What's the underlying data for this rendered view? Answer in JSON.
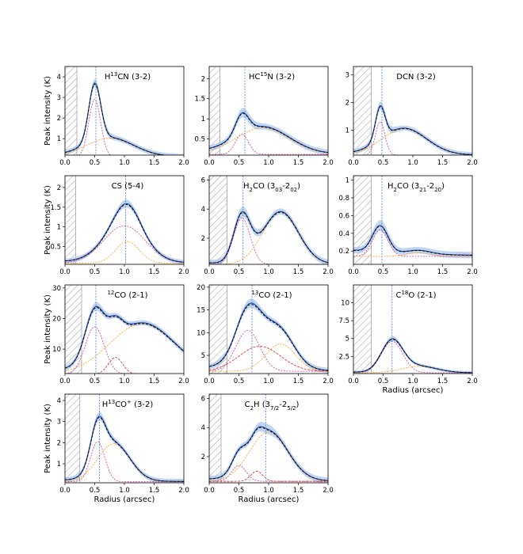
{
  "figure": {
    "ylabel": "Peak intensity (K)",
    "xlabel": "Radius (arcsec)"
  },
  "chart_data": [
    {
      "type": "line",
      "title_main": "H",
      "title_sup": "13",
      "title_rest": "CN (3-2)",
      "xlim": [
        0,
        2
      ],
      "ylim": [
        0.2,
        4.5
      ],
      "yticks": [
        1,
        2,
        3,
        4
      ],
      "xticks": [
        0.0,
        0.5,
        1.0,
        1.5,
        2.0
      ],
      "hatch_end": 0.2,
      "vline": 0.52,
      "comp1": {
        "amp": 2.8,
        "mu": 0.5,
        "sig": 0.1
      },
      "comp2": {
        "amp": 0.9,
        "mu": 0.75,
        "sig": 0.4
      },
      "base": 0.12,
      "band": 0.2
    },
    {
      "type": "line",
      "title_main": "HC",
      "title_sup": "15",
      "title_rest": "N (3-2)",
      "xlim": [
        0,
        2
      ],
      "ylim": [
        0.1,
        2.3
      ],
      "yticks": [
        0.5,
        1.0,
        1.5,
        2.0
      ],
      "xticks": [
        0.0,
        0.5,
        1.0,
        1.5,
        2.0
      ],
      "hatch_end": 0.18,
      "vline": 0.6,
      "comp1": {
        "amp": 0.5,
        "mu": 0.55,
        "sig": 0.11
      },
      "comp2": {
        "amp": 0.66,
        "mu": 0.9,
        "sig": 0.45
      },
      "base": 0.12,
      "band": 0.12
    },
    {
      "type": "line",
      "title_main": "DCN (3-2)",
      "title_sup": "",
      "title_rest": "",
      "xlim": [
        0,
        2
      ],
      "ylim": [
        0.1,
        3.3
      ],
      "yticks": [
        1,
        2,
        3
      ],
      "xticks": [
        0.0,
        0.5,
        1.0,
        1.5,
        2.0
      ],
      "hatch_end": 0.3,
      "vline": 0.48,
      "comp1": {
        "amp": 1.2,
        "mu": 0.45,
        "sig": 0.08
      },
      "comp2": {
        "amp": 0.95,
        "mu": 0.85,
        "sig": 0.38
      },
      "base": 0.1,
      "band": 0.15
    },
    {
      "type": "line",
      "title_main": "CS (5-4)",
      "title_sup": "",
      "title_rest": "",
      "xlim": [
        0,
        2
      ],
      "ylim": [
        0.05,
        2.3
      ],
      "yticks": [
        0.5,
        1.0,
        1.5,
        2.0
      ],
      "xticks": [
        0.0,
        0.5,
        1.0,
        1.5,
        2.0
      ],
      "hatch_end": 0.18,
      "vline": 1.02,
      "comp1": {
        "amp": 0.95,
        "mu": 1.0,
        "sig": 0.35
      },
      "comp2": {
        "amp": 0.55,
        "mu": 1.05,
        "sig": 0.2
      },
      "base": 0.08,
      "band": 0.1
    },
    {
      "type": "line",
      "title_main": "H",
      "title_sup": "",
      "title_rest": "CO (3",
      "title_full": "H2CO (303-202)",
      "xlim": [
        0,
        2
      ],
      "ylim": [
        0.2,
        6.3
      ],
      "yticks": [
        2,
        4,
        6
      ],
      "xticks": [
        0.0,
        0.5,
        1.0,
        1.5,
        2.0
      ],
      "hatch_end": 0.3,
      "vline": 0.57,
      "comp1": {
        "amp": 3.2,
        "mu": 0.55,
        "sig": 0.14
      },
      "comp2": {
        "amp": 3.6,
        "mu": 1.2,
        "sig": 0.3
      },
      "base": 0.2,
      "band": 0.35
    },
    {
      "type": "line",
      "title_main": "H",
      "title_sup": "",
      "title_rest": "",
      "title_full": "H2CO (321-220)",
      "xlim": [
        0,
        2
      ],
      "ylim": [
        0.05,
        1.05
      ],
      "yticks": [
        0.2,
        0.4,
        0.6,
        0.8,
        1.0
      ],
      "xticks": [
        0.0,
        0.5,
        1.0,
        1.5,
        2.0
      ],
      "hatch_end": 0.3,
      "vline": 0.48,
      "comp1": {
        "amp": 0.3,
        "mu": 0.45,
        "sig": 0.13
      },
      "comp2": {
        "amp": 0.04,
        "mu": 1.1,
        "sig": 0.2
      },
      "base": 0.14,
      "band": 0.06
    },
    {
      "type": "line",
      "title_main": "",
      "title_sup": "12",
      "title_rest": "CO (2-1)",
      "xlim": [
        0,
        2
      ],
      "ylim": [
        2,
        31
      ],
      "yticks": [
        10,
        20,
        30
      ],
      "xticks": [
        0.0,
        0.5,
        1.0,
        1.5,
        2.0
      ],
      "hatch_end": 0.28,
      "vline": 0.52,
      "comp1": {
        "amp": 15.5,
        "mu": 0.5,
        "sig": 0.16
      },
      "comp2": {
        "amp": 16.5,
        "mu": 1.3,
        "sig": 0.55
      },
      "comp3": {
        "amp": 5.5,
        "mu": 0.85,
        "sig": 0.12
      },
      "base": 1.8,
      "band": 1.4
    },
    {
      "type": "line",
      "title_main": "",
      "title_sup": "13",
      "title_rest": "CO (2-1)",
      "xlim": [
        0,
        2
      ],
      "ylim": [
        1,
        20.5
      ],
      "yticks": [
        5,
        10,
        15,
        20
      ],
      "xticks": [
        0.0,
        0.5,
        1.0,
        1.5,
        2.0
      ],
      "hatch_end": 0.3,
      "vline": 0.72,
      "comp1": {
        "amp": 9.0,
        "mu": 0.65,
        "sig": 0.2
      },
      "comp2": {
        "amp": 6.0,
        "mu": 1.2,
        "sig": 0.25
      },
      "comp3": {
        "amp": 5.5,
        "mu": 0.85,
        "sig": 0.35
      },
      "base": 1.5,
      "band": 1.0
    },
    {
      "type": "line",
      "title_main": "C",
      "title_sup": "18",
      "title_rest": "O (2-1)",
      "xlim": [
        0,
        2
      ],
      "ylim": [
        0.1,
        12.5
      ],
      "yticks": [
        2.5,
        5.0,
        7.5,
        10.0
      ],
      "xticks": [
        0.0,
        0.5,
        1.0,
        1.5,
        2.0
      ],
      "hatch_end": 0.3,
      "vline": 0.65,
      "comp1": {
        "amp": 4.4,
        "mu": 0.65,
        "sig": 0.18
      },
      "comp2": {
        "amp": 0.9,
        "mu": 1.1,
        "sig": 0.3
      },
      "base": 0.2,
      "band": 0.35
    },
    {
      "type": "line",
      "title_main": "H",
      "title_sup": "13",
      "title_rest": "CO",
      "title_full": "H13CO+ (3-2)",
      "xlim": [
        0,
        2
      ],
      "ylim": [
        0.1,
        4.3
      ],
      "yticks": [
        1,
        2,
        3,
        4
      ],
      "xticks": [
        0.0,
        0.5,
        1.0,
        1.5,
        2.0
      ],
      "hatch_end": 0.25,
      "vline": 0.58,
      "comp1": {
        "amp": 1.9,
        "mu": 0.55,
        "sig": 0.12
      },
      "comp2": {
        "amp": 1.8,
        "mu": 0.82,
        "sig": 0.27
      },
      "base": 0.15,
      "band": 0.2
    },
    {
      "type": "line",
      "title_main": "C",
      "title_sup": "",
      "title_rest": "H (3",
      "title_full": "C2H (37/2-25/2)",
      "xlim": [
        0,
        2
      ],
      "ylim": [
        0.2,
        6.3
      ],
      "yticks": [
        2,
        4,
        6
      ],
      "xticks": [
        0.0,
        0.5,
        1.0,
        1.5,
        2.0
      ],
      "hatch_end": 0.2,
      "vline": 0.95,
      "comp1": {
        "amp": 1.1,
        "mu": 0.5,
        "sig": 0.12
      },
      "comp2": {
        "amp": 3.4,
        "mu": 1.0,
        "sig": 0.32
      },
      "comp3": {
        "amp": 0.7,
        "mu": 0.8,
        "sig": 0.1
      },
      "base": 0.3,
      "band": 0.35
    }
  ],
  "panel_titles": [
    {
      "pre": "H",
      "sup": "13",
      "sub": "",
      "post": "CN (3-2)",
      "sub2": "",
      "post2": "",
      "sub3": "",
      "post3": ""
    },
    {
      "pre": "HC",
      "sup": "15",
      "sub": "",
      "post": "N (3-2)",
      "sub2": "",
      "post2": "",
      "sub3": "",
      "post3": ""
    },
    {
      "pre": "DCN (3-2)",
      "sup": "",
      "sub": "",
      "post": "",
      "sub2": "",
      "post2": "",
      "sub3": "",
      "post3": ""
    },
    {
      "pre": "CS (5-4)",
      "sup": "",
      "sub": "",
      "post": "",
      "sub2": "",
      "post2": "",
      "sub3": "",
      "post3": ""
    },
    {
      "pre": "H",
      "sup": "",
      "sub": "2",
      "post": "CO (3",
      "sub2": "03",
      "post2": "-2",
      "sub3": "02",
      "post3": ")"
    },
    {
      "pre": "H",
      "sup": "",
      "sub": "2",
      "post": "CO (3",
      "sub2": "21",
      "post2": "-2",
      "sub3": "20",
      "post3": ")"
    },
    {
      "pre": "",
      "sup": "12",
      "sub": "",
      "post": "CO (2-1)",
      "sub2": "",
      "post2": "",
      "sub3": "",
      "post3": ""
    },
    {
      "pre": "",
      "sup": "13",
      "sub": "",
      "post": "CO (2-1)",
      "sub2": "",
      "post2": "",
      "sub3": "",
      "post3": ""
    },
    {
      "pre": "C",
      "sup": "18",
      "sub": "",
      "post": "O (2-1)",
      "sub2": "",
      "post2": "",
      "sub3": "",
      "post3": ""
    },
    {
      "pre": "H",
      "sup": "13",
      "sub": "",
      "post": "CO",
      "sup2": "+",
      "post2": " (3-2)",
      "sub2": "",
      "sub3": "",
      "post3": ""
    },
    {
      "pre": "C",
      "sup": "",
      "sub": "2",
      "post": "H (3",
      "sub2": "7/2",
      "post2": "-2",
      "sub3": "5/2",
      "post3": ")"
    }
  ],
  "colors": {
    "band": "#aec7e8",
    "data": "#1f3fa0",
    "model": "#000000",
    "comp1": "#d63fa0",
    "comp2": "#ff9f1a",
    "comp3": "#d62728",
    "vline": "#4a7fd4",
    "hatch": "#888888"
  }
}
